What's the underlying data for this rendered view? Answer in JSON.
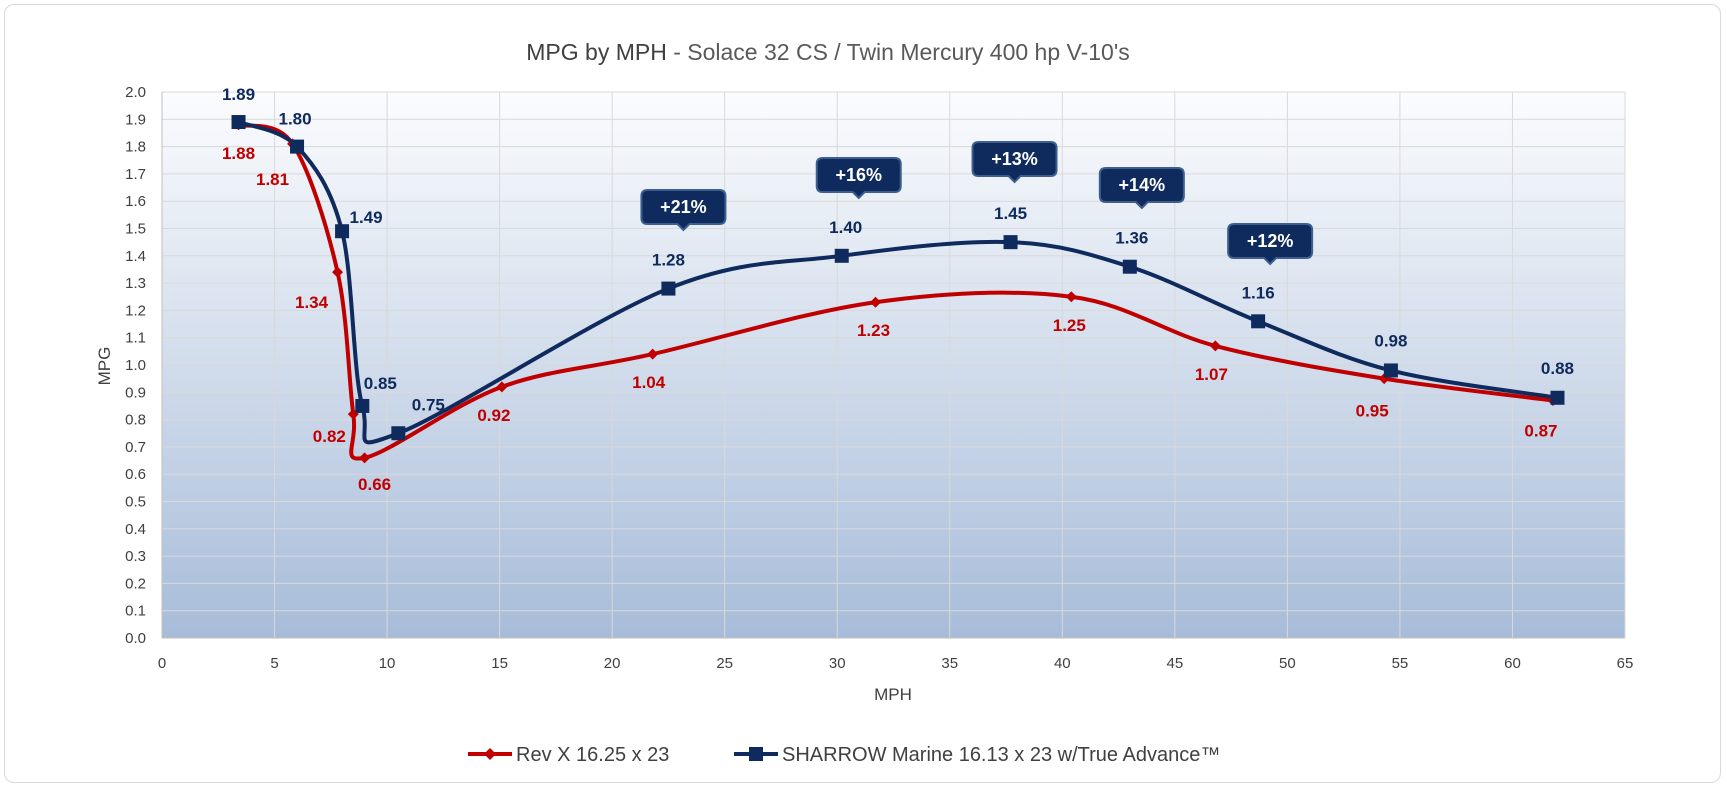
{
  "chart_data": {
    "type": "line",
    "title": "MPG by MPH",
    "subtitle": " - Solace 32 CS / Twin Mercury 400 hp V-10's",
    "xlabel": "MPH",
    "ylabel": "MPG",
    "xlim": [
      0,
      65
    ],
    "ylim": [
      0,
      2.0
    ],
    "xticks": [
      0,
      5,
      10,
      15,
      20,
      25,
      30,
      35,
      40,
      45,
      50,
      55,
      60,
      65
    ],
    "yticks": [
      "0.0",
      "0.1",
      "0.2",
      "0.3",
      "0.4",
      "0.5",
      "0.6",
      "0.7",
      "0.8",
      "0.9",
      "1.0",
      "1.1",
      "1.2",
      "1.3",
      "1.4",
      "1.5",
      "1.6",
      "1.7",
      "1.8",
      "1.9",
      "2.0"
    ],
    "grid": true,
    "legend_position": "bottom",
    "series": [
      {
        "name": "Rev X 16.25 x 23",
        "color": "#c00000",
        "marker": "diamond",
        "points": [
          {
            "x": 3.4,
            "y": 1.88,
            "label": "1.88"
          },
          {
            "x": 5.8,
            "y": 1.81,
            "label": "1.81"
          },
          {
            "x": 7.8,
            "y": 1.34,
            "label": "1.34"
          },
          {
            "x": 8.5,
            "y": 0.82,
            "label": "0.82"
          },
          {
            "x": 9.0,
            "y": 0.66,
            "label": "0.66"
          },
          {
            "x": 15.1,
            "y": 0.92,
            "label": "0.92"
          },
          {
            "x": 21.8,
            "y": 1.04,
            "label": "1.04"
          },
          {
            "x": 31.7,
            "y": 1.23,
            "label": "1.23"
          },
          {
            "x": 40.4,
            "y": 1.25,
            "label": "1.25"
          },
          {
            "x": 46.8,
            "y": 1.07,
            "label": "1.07"
          },
          {
            "x": 54.3,
            "y": 0.95,
            "label": "0.95"
          },
          {
            "x": 61.8,
            "y": 0.87,
            "label": "0.87"
          }
        ]
      },
      {
        "name": "SHARROW Marine 16.13 x 23 w/True Advance™",
        "color": "#0f2a5c",
        "marker": "square",
        "points": [
          {
            "x": 3.4,
            "y": 1.89,
            "label": "1.89"
          },
          {
            "x": 6.0,
            "y": 1.8,
            "label": "1.80"
          },
          {
            "x": 8.0,
            "y": 1.49,
            "label": "1.49"
          },
          {
            "x": 8.9,
            "y": 0.85,
            "label": "0.85"
          },
          {
            "x": 10.5,
            "y": 0.75,
            "label": "0.75"
          },
          {
            "x": 22.5,
            "y": 1.28,
            "label": "1.28"
          },
          {
            "x": 30.2,
            "y": 1.4,
            "label": "1.40"
          },
          {
            "x": 37.7,
            "y": 1.45,
            "label": "1.45"
          },
          {
            "x": 43.0,
            "y": 1.36,
            "label": "1.36"
          },
          {
            "x": 48.7,
            "y": 1.16,
            "label": "1.16"
          },
          {
            "x": 54.6,
            "y": 0.98,
            "label": "0.98"
          },
          {
            "x": 62.0,
            "y": 0.88,
            "label": "0.88"
          }
        ]
      }
    ],
    "annotations": [
      {
        "text": "+21%",
        "x": 22.5
      },
      {
        "text": "+16%",
        "x": 30.2
      },
      {
        "text": "+13%",
        "x": 37.7
      },
      {
        "text": "+14%",
        "x": 43.0
      },
      {
        "text": "+12%",
        "x": 48.7
      }
    ]
  }
}
